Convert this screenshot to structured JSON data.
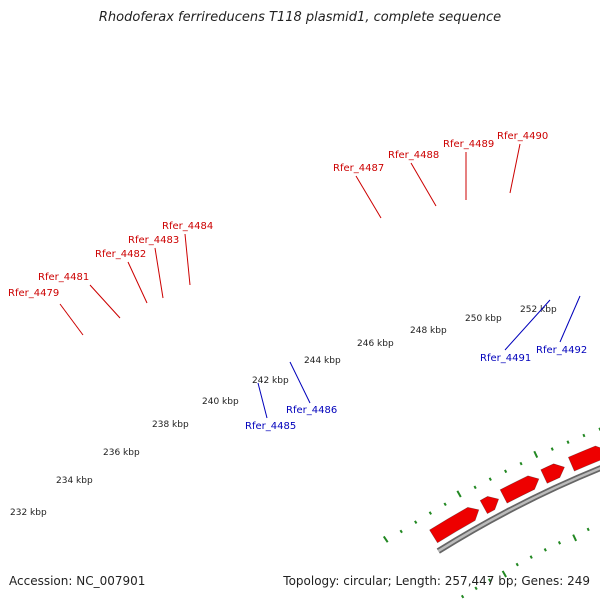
{
  "title": "Rhodoferax ferrireducens T118 plasmid1, complete sequence",
  "accession_text": "Accession: NC_007901",
  "summary_text": "Topology: circular; Length: 257,447 bp; Genes: 249",
  "colors": {
    "forward_gene": "#ee0000",
    "reverse_gene": "#1010ee",
    "highlight_gene": "#ee1199",
    "backbone": "#888888",
    "ticks": "#228822",
    "forward_label": "#cc0000",
    "reverse_label": "#0000bb"
  },
  "kbp_labels": [
    "232 kbp",
    "234 kbp",
    "236 kbp",
    "238 kbp",
    "240 kbp",
    "242 kbp",
    "244 kbp",
    "246 kbp",
    "248 kbp",
    "250 kbp",
    "252 kbp"
  ],
  "forward_gene_labels": [
    "Rfer_4479",
    "Rfer_4481",
    "Rfer_4482",
    "Rfer_4483",
    "Rfer_4484",
    "Rfer_4487",
    "Rfer_4488",
    "Rfer_4489",
    "Rfer_4490"
  ],
  "reverse_gene_labels": [
    "Rfer_4485",
    "Rfer_4486",
    "Rfer_4491",
    "Rfer_4492"
  ]
}
